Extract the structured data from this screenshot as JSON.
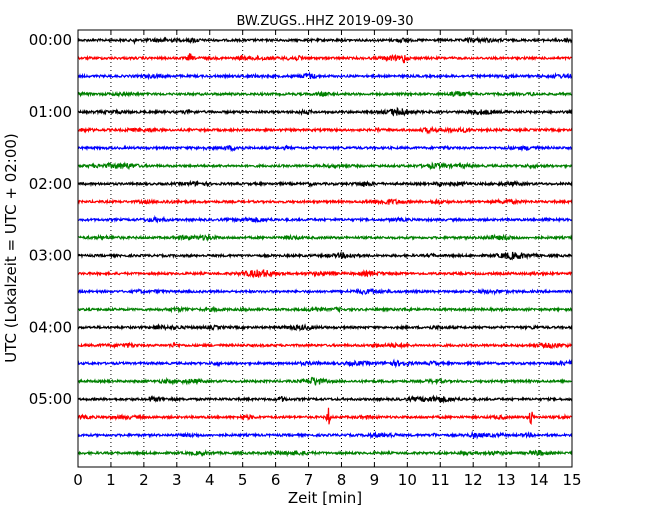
{
  "chart_data": {
    "type": "line",
    "title": "BW.ZUGS..HHZ 2019-09-30",
    "xlabel": "Zeit  [min]",
    "ylabel": "UTC (Lokalzeit = UTC + 02:00)",
    "xlim": [
      0,
      15
    ],
    "x_ticks": [
      "0",
      "1",
      "2",
      "3",
      "4",
      "5",
      "6",
      "7",
      "8",
      "9",
      "10",
      "11",
      "12",
      "13",
      "14",
      "15"
    ],
    "y_ticks": [
      "00:00",
      "01:00",
      "02:00",
      "03:00",
      "04:00",
      "05:00"
    ],
    "grid": "vertical dotted",
    "trace_start_minutes_utc": [
      0,
      15,
      30,
      45,
      60,
      75,
      90,
      105,
      120,
      135,
      150,
      165,
      180,
      195,
      210,
      225,
      240,
      255,
      270,
      285,
      300,
      315,
      330,
      345
    ],
    "trace_colors": [
      "#000000",
      "#ff0000",
      "#0000ff",
      "#008000"
    ],
    "events": [
      {
        "trace_start_minutes_utc": 315,
        "x": 7.6,
        "amplitude": "large"
      },
      {
        "trace_start_minutes_utc": 315,
        "x": 13.75,
        "amplitude": "large"
      },
      {
        "trace_start_minutes_utc": 315,
        "x": 5.0,
        "amplitude": "small"
      },
      {
        "trace_start_minutes_utc": 15,
        "x": 9.9,
        "amplitude": "medium"
      },
      {
        "trace_start_minutes_utc": 15,
        "x": 3.4,
        "amplitude": "small"
      },
      {
        "trace_start_minutes_utc": 0,
        "x": 1.7,
        "amplitude": "small"
      },
      {
        "trace_start_minutes_utc": 75,
        "x": 9.1,
        "amplitude": "small"
      },
      {
        "trace_start_minutes_utc": 330,
        "x": 10.8,
        "amplitude": "small"
      },
      {
        "trace_start_minutes_utc": 300,
        "x": 2.2,
        "amplitude": "small"
      }
    ]
  }
}
